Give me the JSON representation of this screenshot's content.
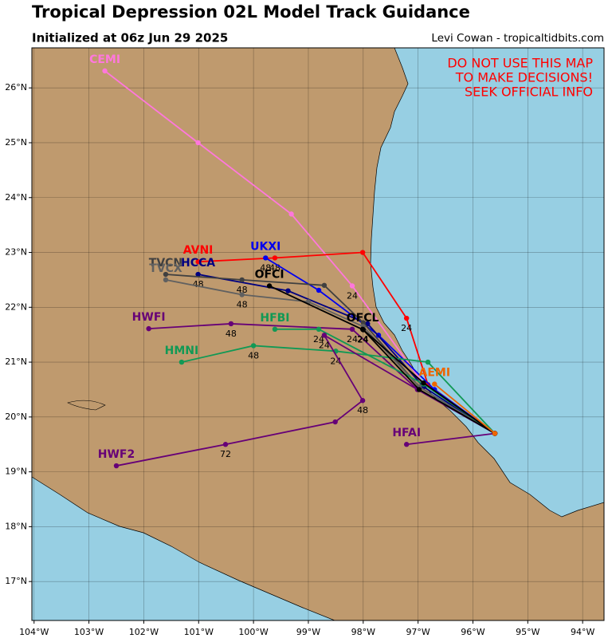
{
  "map": {
    "title": "Tropical Depression 02L Model Track Guidance",
    "subtitle": "Initialized at 06z Jun 29 2025",
    "credit": "Levi Cowan - tropicaltidbits.com",
    "warning": [
      "DO NOT USE THIS MAP",
      "TO MAKE DECISIONS!",
      "SEEK OFFICIAL INFO"
    ],
    "xlim": [
      -104.04,
      -93.61
    ],
    "ylim": [
      16.29,
      26.73
    ],
    "xticks": [
      {
        "value": -104,
        "label": "104°W"
      },
      {
        "value": -103,
        "label": "103°W"
      },
      {
        "value": -102,
        "label": "102°W"
      },
      {
        "value": -101,
        "label": "101°W"
      },
      {
        "value": -100,
        "label": "100°W"
      },
      {
        "value": -99,
        "label": "99°W"
      },
      {
        "value": -98,
        "label": "98°W"
      },
      {
        "value": -97,
        "label": "97°W"
      },
      {
        "value": -96,
        "label": "96°W"
      },
      {
        "value": -95,
        "label": "95°W"
      },
      {
        "value": -94,
        "label": "94°W"
      }
    ],
    "yticks": [
      {
        "value": 17,
        "label": "17°N"
      },
      {
        "value": 18,
        "label": "18°N"
      },
      {
        "value": 19,
        "label": "19°N"
      },
      {
        "value": 20,
        "label": "20°N"
      },
      {
        "value": 21,
        "label": "21°N"
      },
      {
        "value": 22,
        "label": "22°N"
      },
      {
        "value": 23,
        "label": "23°N"
      },
      {
        "value": 24,
        "label": "24°N"
      },
      {
        "value": 25,
        "label": "25°N"
      },
      {
        "value": 26,
        "label": "26°N"
      }
    ],
    "tracks": [
      {
        "name": "CEMI",
        "color": "#ff77dd",
        "lon": [
          -95.6,
          -96.9,
          -98.2,
          -99.31,
          -101.01,
          -102.71
        ],
        "lat": [
          19.7,
          20.6,
          22.39,
          23.7,
          25.0,
          26.31
        ],
        "labels": [
          null,
          null,
          "24",
          null,
          null,
          null
        ]
      },
      {
        "name": "AVNI",
        "color": "#ff0000",
        "lon": [
          -95.6,
          -96.82,
          -97.21,
          -98.01,
          -99.61,
          -101.01
        ],
        "lat": [
          19.7,
          20.59,
          21.8,
          23.0,
          22.9,
          22.83
        ],
        "labels": [
          null,
          null,
          "24",
          null,
          "48",
          null
        ]
      },
      {
        "name": "UKXI",
        "color": "#0000ee",
        "lon": [
          -95.6,
          -96.7,
          -97.72,
          -98.81,
          -99.78
        ],
        "lat": [
          19.7,
          20.5,
          21.49,
          22.31,
          22.9
        ],
        "labels": [
          null,
          null,
          null,
          null,
          "48"
        ]
      },
      {
        "name": "HCCA",
        "color": "#000080",
        "lon": [
          -95.6,
          -96.9,
          -97.92,
          -99.37,
          -101.01
        ],
        "lat": [
          19.7,
          20.55,
          21.7,
          22.3,
          22.6
        ],
        "labels": [
          null,
          null,
          null,
          null,
          "48"
        ]
      },
      {
        "name": "TVCN",
        "color": "#404040",
        "lon": [
          -95.6,
          -96.98,
          -98.0,
          -98.71,
          -100.21,
          -101.6
        ],
        "lat": [
          19.7,
          20.55,
          21.72,
          22.4,
          22.5,
          22.6
        ],
        "labels": [
          null,
          null,
          null,
          null,
          "48",
          null
        ]
      },
      {
        "name": "TVCX",
        "color": "#606060",
        "lon": [
          -95.6,
          -96.98,
          -98.0,
          -99.0,
          -100.21,
          -101.6
        ],
        "lat": [
          19.7,
          20.55,
          21.65,
          22.1,
          22.23,
          22.5
        ],
        "labels": [
          null,
          null,
          null,
          null,
          "48",
          null
        ]
      },
      {
        "name": "HWFI",
        "color": "#660077",
        "lon": [
          -95.6,
          -97.01,
          -98.2,
          -100.41,
          -101.91
        ],
        "lat": [
          19.7,
          20.5,
          21.6,
          21.7,
          21.61
        ],
        "labels": [
          null,
          null,
          "24",
          "48",
          null
        ]
      },
      {
        "name": "HFBI",
        "color": "#119955",
        "lon": [
          -95.6,
          -96.9,
          -98.81,
          -99.61
        ],
        "lat": [
          19.7,
          20.6,
          21.6,
          21.6
        ],
        "labels": [
          null,
          null,
          "24",
          null
        ]
      },
      {
        "name": "HMNI",
        "color": "#119955",
        "lon": [
          -95.6,
          -96.82,
          -98.5,
          -100.0,
          -101.31
        ],
        "lat": [
          19.7,
          21.0,
          21.2,
          21.3,
          21.0
        ],
        "labels": [
          null,
          null,
          "24",
          "48",
          null
        ]
      },
      {
        "name": "HWF2",
        "color": "#660077",
        "lon": [
          -95.6,
          -97.01,
          -98.71,
          -98.01,
          -98.51,
          -100.51,
          -102.5
        ],
        "lat": [
          19.7,
          20.5,
          21.49,
          20.3,
          19.91,
          19.5,
          19.11
        ],
        "labels": [
          null,
          null,
          "24",
          "48",
          null,
          "72",
          null
        ]
      },
      {
        "name": "HFAI",
        "color": "#660077",
        "lon": [
          -95.6,
          -97.21
        ],
        "lat": [
          19.7,
          19.5
        ],
        "labels": [
          null,
          null
        ]
      },
      {
        "name": "OFCI",
        "color": "#000000",
        "lon": [
          -95.6,
          -96.98,
          -98.0,
          -99.71
        ],
        "lat": [
          19.7,
          20.5,
          21.59,
          22.39
        ],
        "labels": [
          null,
          null,
          "24",
          null
        ]
      },
      {
        "name": "OFCL",
        "color": "#000000",
        "lon": [
          -95.6,
          -96.9,
          -98.01
        ],
        "lat": [
          19.7,
          20.62,
          21.6
        ],
        "labels": [
          null,
          null,
          "24"
        ]
      },
      {
        "name": "AEMI",
        "color": "#ee6600",
        "lon": [
          -95.6,
          -96.7
        ],
        "lat": [
          19.7,
          20.6
        ],
        "labels": [
          null,
          null
        ]
      }
    ]
  }
}
